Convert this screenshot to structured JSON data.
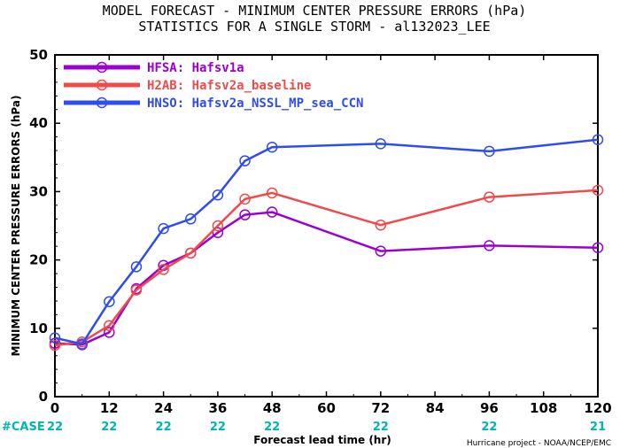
{
  "chart_data": {
    "type": "line",
    "title_line1": "MODEL FORECAST - MINIMUM CENTER PRESSURE ERRORS (hPa)",
    "title_line2": "STATISTICS FOR A SINGLE STORM - al132023_LEE",
    "xlabel": "Forecast lead time (hr)",
    "ylabel": "MINIMUM CENTER PRESSURE ERRORS (hPa)",
    "xlim": [
      0,
      120
    ],
    "ylim": [
      0,
      50
    ],
    "x_ticks": [
      "0",
      "12",
      "24",
      "36",
      "48",
      "60",
      "72",
      "84",
      "96",
      "108",
      "120"
    ],
    "y_ticks": [
      "0",
      "10",
      "20",
      "30",
      "40",
      "50"
    ],
    "case_header": "#CASE",
    "case_counts": [
      {
        "x": 0,
        "count": "22"
      },
      {
        "x": 12,
        "count": "22"
      },
      {
        "x": 24,
        "count": "22"
      },
      {
        "x": 36,
        "count": "22"
      },
      {
        "x": 48,
        "count": "22"
      },
      {
        "x": 72,
        "count": "22"
      },
      {
        "x": 96,
        "count": "22"
      },
      {
        "x": 120,
        "count": "21"
      }
    ],
    "legend_position": "top-left",
    "series": [
      {
        "name": "HFSA: Hafsv1a",
        "color": "#9b00d3",
        "x": [
          0,
          6,
          12,
          18,
          24,
          30,
          36,
          42,
          48,
          72,
          96,
          120
        ],
        "y": [
          7.8,
          7.6,
          9.4,
          15.8,
          19.2,
          21.0,
          24.0,
          26.6,
          27.0,
          21.3,
          22.1,
          21.8
        ]
      },
      {
        "name": "H2AB: Hafsv2a_baseline",
        "color": "#f04a4a",
        "x": [
          0,
          6,
          12,
          18,
          24,
          30,
          36,
          42,
          48,
          72,
          96,
          120
        ],
        "y": [
          7.5,
          8.0,
          10.4,
          15.6,
          18.6,
          21.0,
          25.0,
          28.9,
          29.8,
          25.1,
          29.2,
          30.2
        ]
      },
      {
        "name": "HNSO: Hafsv2a_NSSL_MP_sea_CCN",
        "color": "#2e4cf0",
        "x": [
          0,
          6,
          12,
          18,
          24,
          30,
          36,
          42,
          48,
          72,
          96,
          120
        ],
        "y": [
          8.6,
          7.7,
          13.9,
          19.0,
          24.6,
          26.0,
          29.5,
          34.5,
          36.5,
          37.0,
          35.9,
          37.6
        ]
      }
    ],
    "case_color": "#00b5b5"
  },
  "credit": "Hurricane project - NOAA/NCEP/EMC"
}
